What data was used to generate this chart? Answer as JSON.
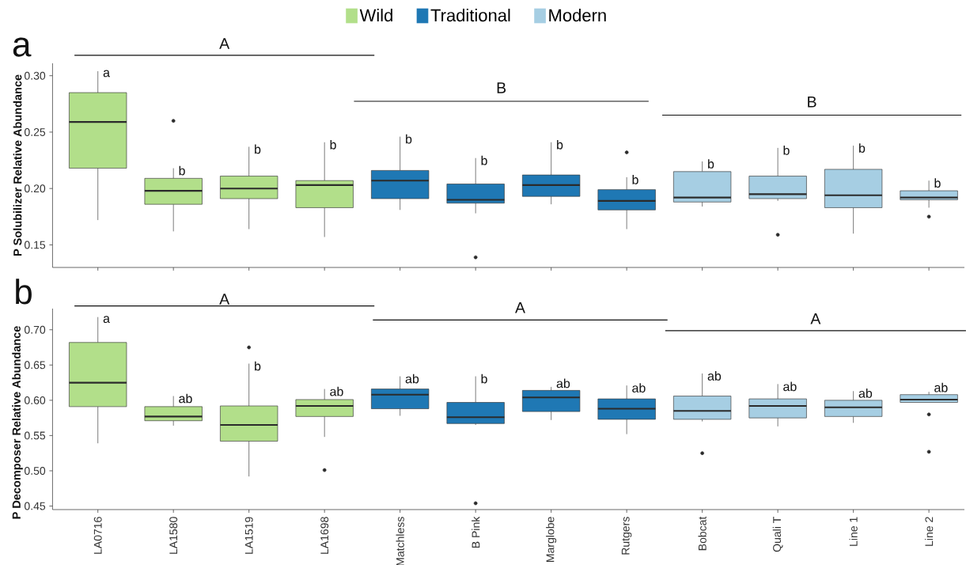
{
  "chart_data": [
    {
      "type": "box",
      "title": "a",
      "ylabel": "P Solubilizer Relative Abundance",
      "categories": [
        "LA0716",
        "LA1580",
        "LA1519",
        "LA1698",
        "Matchless",
        "B Pink",
        "Marglobe",
        "Rutgers",
        "Bobcat",
        "Quali T",
        "Line 1",
        "Line 2"
      ],
      "series": [
        {
          "name": "Wild",
          "color": "#b2df8a",
          "boxes": [
            {
              "low": 0.172,
              "q1": 0.218,
              "median": 0.259,
              "q3": 0.285,
              "high": 0.304
            },
            {
              "low": 0.162,
              "q1": 0.186,
              "median": 0.198,
              "q3": 0.209,
              "high": 0.218,
              "outliers": [
                0.26
              ]
            },
            {
              "low": 0.164,
              "q1": 0.191,
              "median": 0.2,
              "q3": 0.211,
              "high": 0.237
            },
            {
              "low": 0.157,
              "q1": 0.183,
              "median": 0.203,
              "q3": 0.207,
              "high": 0.241
            },
            null,
            null,
            null,
            null,
            null,
            null,
            null,
            null
          ]
        },
        {
          "name": "Traditional",
          "color": "#1f78b4",
          "boxes": [
            null,
            null,
            null,
            null,
            {
              "low": 0.181,
              "q1": 0.191,
              "median": 0.207,
              "q3": 0.216,
              "high": 0.246
            },
            {
              "low": 0.178,
              "q1": 0.187,
              "median": 0.19,
              "q3": 0.204,
              "high": 0.227,
              "outliers": [
                0.139
              ]
            },
            {
              "low": 0.186,
              "q1": 0.193,
              "median": 0.203,
              "q3": 0.212,
              "high": 0.241
            },
            {
              "low": 0.164,
              "q1": 0.181,
              "median": 0.189,
              "q3": 0.199,
              "high": 0.21,
              "outliers": [
                0.232
              ]
            },
            null,
            null,
            null,
            null
          ]
        },
        {
          "name": "Modern",
          "color": "#a6cee3",
          "boxes": [
            null,
            null,
            null,
            null,
            null,
            null,
            null,
            null,
            {
              "low": 0.184,
              "q1": 0.188,
              "median": 0.192,
              "q3": 0.215,
              "high": 0.224
            },
            {
              "low": 0.189,
              "q1": 0.191,
              "median": 0.195,
              "q3": 0.211,
              "high": 0.236,
              "outliers": [
                0.159
              ]
            },
            {
              "low": 0.16,
              "q1": 0.183,
              "median": 0.194,
              "q3": 0.217,
              "high": 0.238
            },
            {
              "low": 0.183,
              "q1": 0.19,
              "median": 0.192,
              "q3": 0.198,
              "high": 0.207,
              "outliers": [
                0.175
              ]
            }
          ]
        }
      ],
      "ylim": [
        0.13,
        0.311
      ],
      "yticks": [
        0.15,
        {
          "value": 0.2,
          "label": "0.20"
        },
        0.25,
        {
          "value": 0.3,
          "label": "0.30"
        }
      ],
      "legend": "top",
      "tick_labels": "y",
      "annotations": [
        "A",
        "B",
        "B",
        {
          "text": "a",
          "x": "LA0716",
          "y": 0.304
        },
        {
          "text": "b",
          "x": "LA1580",
          "y": 0.218
        },
        {
          "text": "b",
          "x": "LA1519",
          "y": 0.237
        },
        {
          "text": "b",
          "x": "LA1698",
          "y": 0.241
        },
        {
          "text": "b",
          "x": "Matchless",
          "y": 0.246
        },
        {
          "text": "b",
          "x": "B Pink",
          "y": 0.227
        },
        {
          "text": "b",
          "x": "Marglobe",
          "y": 0.241
        },
        {
          "text": "b",
          "x": "Rutgers",
          "y": 0.21
        },
        {
          "text": "b",
          "x": "Bobcat",
          "y": 0.224
        },
        {
          "text": "b",
          "x": "Quali T",
          "y": 0.236
        },
        {
          "text": "b",
          "x": "Line 1",
          "y": 0.238
        },
        {
          "text": "b",
          "x": "Line 2",
          "y": 0.207
        }
      ]
    },
    {
      "type": "box",
      "title": "b",
      "ylabel": "P Decomposer Relative Abundance",
      "categories": [
        "LA0716",
        "LA1580",
        "LA1519",
        "LA1698",
        "Matchless",
        "B Pink",
        "Marglobe",
        "Rutgers",
        "Bobcat",
        "Quali T",
        "Line 1",
        "Line 2"
      ],
      "series": [
        {
          "color": "#b2df8a",
          "boxes": [
            {
              "low": 0.539,
              "q1": 0.591,
              "median": 0.625,
              "q3": 0.682,
              "high": 0.718
            },
            {
              "low": 0.564,
              "q1": 0.571,
              "median": 0.577,
              "q3": 0.591,
              "high": 0.606
            },
            {
              "low": 0.492,
              "q1": 0.542,
              "median": 0.565,
              "q3": 0.592,
              "high": 0.652,
              "outliers": [
                0.675
              ]
            },
            {
              "low": 0.548,
              "q1": 0.577,
              "median": 0.592,
              "q3": 0.601,
              "high": 0.616,
              "outliers": [
                0.501
              ]
            },
            null,
            null,
            null,
            null,
            null,
            null,
            null,
            null
          ]
        },
        {
          "color": "#1f78b4",
          "boxes": [
            null,
            null,
            null,
            null,
            {
              "low": 0.578,
              "q1": 0.588,
              "median": 0.608,
              "q3": 0.616,
              "high": 0.634
            },
            {
              "low": 0.565,
              "q1": 0.567,
              "median": 0.576,
              "q3": 0.597,
              "high": 0.634,
              "outliers": [
                0.454
              ]
            },
            {
              "low": 0.572,
              "q1": 0.584,
              "median": 0.604,
              "q3": 0.614,
              "high": 0.619
            },
            {
              "low": 0.552,
              "q1": 0.573,
              "median": 0.588,
              "q3": 0.602,
              "high": 0.621
            },
            null,
            null,
            null,
            null
          ]
        },
        {
          "color": "#a6cee3",
          "boxes": [
            null,
            null,
            null,
            null,
            null,
            null,
            null,
            null,
            {
              "low": 0.57,
              "q1": 0.573,
              "median": 0.585,
              "q3": 0.606,
              "high": 0.638,
              "outliers": [
                0.525
              ]
            },
            {
              "low": 0.563,
              "q1": 0.575,
              "median": 0.592,
              "q3": 0.602,
              "high": 0.623
            },
            {
              "low": 0.568,
              "q1": 0.577,
              "median": 0.59,
              "q3": 0.6,
              "high": 0.613
            },
            {
              "low": 0.597,
              "q1": 0.597,
              "median": 0.601,
              "q3": 0.608,
              "high": 0.612,
              "outliers": [
                0.58,
                0.527
              ]
            }
          ]
        }
      ],
      "ylim": [
        0.445,
        0.73
      ],
      "yticks": [
        0.45,
        {
          "value": 0.5,
          "label": "0.50"
        },
        0.55,
        {
          "value": 0.6,
          "label": "0.60"
        },
        0.65,
        {
          "value": 0.7,
          "label": "0.70"
        }
      ],
      "annotations": [
        "A",
        "A",
        "A",
        {
          "text": "a",
          "x": "LA0716",
          "y": 0.718
        },
        {
          "text": "ab",
          "x": "LA1580",
          "y": 0.606
        },
        {
          "text": "b",
          "x": "LA1519",
          "y": 0.652
        },
        {
          "text": "ab",
          "x": "LA1698",
          "y": 0.616
        },
        {
          "text": "ab",
          "x": "Matchless",
          "y": 0.634
        },
        {
          "text": "b",
          "x": "B Pink",
          "y": 0.634
        },
        {
          "text": "ab",
          "x": "Marglobe",
          "y": 0.619
        },
        {
          "text": "ab",
          "x": "Rutgers",
          "y": 0.621
        },
        {
          "text": "ab",
          "x": "Bobcat",
          "y": 0.638
        },
        {
          "text": "ab",
          "x": "Quali T",
          "y": 0.623
        },
        {
          "text": "ab",
          "x": "Line 1",
          "y": 0.613
        },
        {
          "text": "ab",
          "x": "Line 2",
          "y": 0.612
        }
      ]
    }
  ]
}
